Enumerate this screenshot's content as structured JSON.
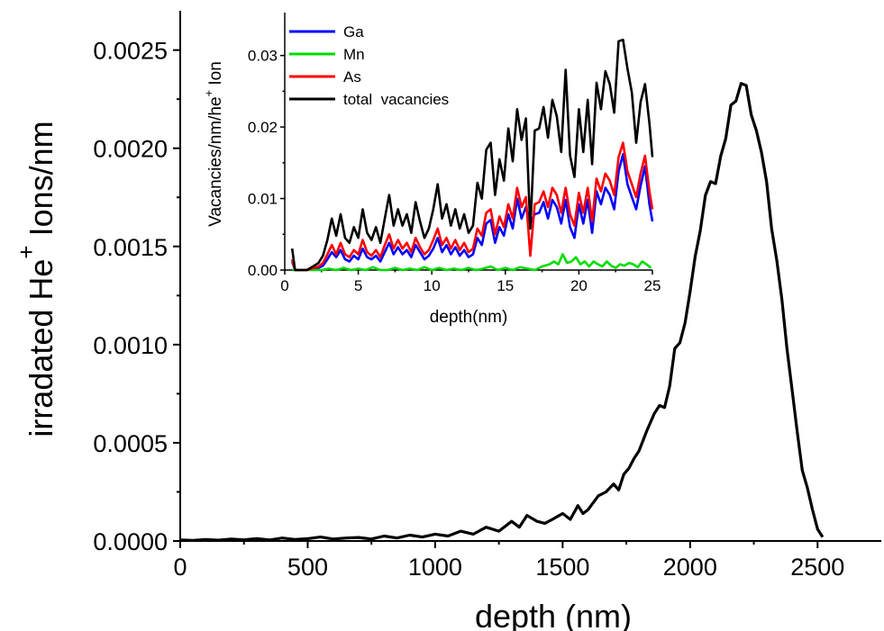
{
  "chart_data": [
    {
      "type": "line",
      "title": "",
      "xlabel": "depth (nm)",
      "ylabel": {
        "main": "irradated He",
        "superscript": "+",
        "tail": " Ions/nm"
      },
      "xlim": [
        0,
        2750
      ],
      "ylim": [
        0,
        0.0027
      ],
      "xticks": [
        "0",
        "500",
        "1000",
        "1500",
        "2000",
        "2500"
      ],
      "yticks": [
        "0.0000",
        "0.0005",
        "0.0010",
        "0.0015",
        "0.0020",
        "0.0025"
      ],
      "grid": false,
      "series": [
        {
          "color": "#000000",
          "x": [
            0,
            50,
            100,
            150,
            200,
            250,
            300,
            350,
            400,
            450,
            500,
            550,
            600,
            650,
            700,
            750,
            800,
            850,
            900,
            950,
            1000,
            1050,
            1100,
            1150,
            1200,
            1250,
            1300,
            1330,
            1360,
            1400,
            1430,
            1460,
            1500,
            1530,
            1560,
            1580,
            1600,
            1640,
            1670,
            1700,
            1720,
            1740,
            1760,
            1780,
            1800,
            1830,
            1860,
            1880,
            1900,
            1920,
            1940,
            1960,
            1980,
            2000,
            2020,
            2040,
            2060,
            2080,
            2100,
            2120,
            2140,
            2160,
            2180,
            2200,
            2220,
            2240,
            2260,
            2280,
            2300,
            2320,
            2340,
            2360,
            2380,
            2400,
            2420,
            2440,
            2460,
            2480,
            2500,
            2520
          ],
          "y": [
            5e-06,
            3e-06,
            8e-06,
            4e-06,
            1e-05,
            6e-06,
            1.2e-05,
            5e-06,
            1.5e-05,
            8e-06,
            1.2e-05,
            2e-05,
            1e-05,
            1.5e-05,
            1.8e-05,
            1e-05,
            2.5e-05,
            1.5e-05,
            3e-05,
            2e-05,
            3.5e-05,
            2.5e-05,
            5e-05,
            3.5e-05,
            7e-05,
            5e-05,
            0.0001,
            7e-05,
            0.00013,
            0.0001,
            9e-05,
            0.00011,
            0.00014,
            0.00011,
            0.00018,
            0.00014,
            0.00016,
            0.00023,
            0.00025,
            0.00029,
            0.00026,
            0.00034,
            0.00037,
            0.00042,
            0.00046,
            0.00056,
            0.00065,
            0.00069,
            0.00068,
            0.00079,
            0.00098,
            0.00101,
            0.00111,
            0.00127,
            0.00145,
            0.00158,
            0.00176,
            0.00183,
            0.00182,
            0.00196,
            0.00205,
            0.00222,
            0.00224,
            0.00233,
            0.00232,
            0.00217,
            0.00209,
            0.00198,
            0.00183,
            0.00159,
            0.00143,
            0.00123,
            0.00098,
            0.00077,
            0.00056,
            0.00036,
            0.00027,
            0.00016,
            6e-05,
            2e-05
          ]
        }
      ]
    },
    {
      "type": "line",
      "title": "",
      "xlabel": "depth(nm)",
      "ylabel": {
        "main": "Vacancies/nm/he",
        "superscript": "+",
        "tail": " Ion"
      },
      "xlim": [
        0,
        25
      ],
      "ylim": [
        0,
        0.036
      ],
      "xticks": [
        "0",
        "5",
        "10",
        "15",
        "20",
        "25"
      ],
      "yticks": [
        "0.00",
        "0.01",
        "0.02",
        "0.03"
      ],
      "grid": false,
      "legend_position": "top-left",
      "series": [
        {
          "name": "Ga",
          "color": "#0000ff",
          "x": [
            0.5,
            0.7,
            1,
            1.5,
            2,
            2.3,
            2.6,
            2.9,
            3.2,
            3.5,
            3.8,
            4.1,
            4.4,
            4.7,
            5,
            5.3,
            5.6,
            5.9,
            6.2,
            6.5,
            6.8,
            7.1,
            7.4,
            7.7,
            8,
            8.3,
            8.6,
            8.9,
            9.2,
            9.5,
            9.8,
            10.1,
            10.4,
            10.7,
            11,
            11.3,
            11.6,
            11.9,
            12.2,
            12.5,
            12.8,
            13.1,
            13.4,
            13.7,
            14,
            14.3,
            14.6,
            14.9,
            15.2,
            15.5,
            15.8,
            16.1,
            16.4,
            16.7,
            17,
            17.3,
            17.6,
            17.9,
            18.2,
            18.5,
            18.8,
            19.1,
            19.4,
            19.7,
            20,
            20.3,
            20.6,
            20.9,
            21.2,
            21.5,
            21.8,
            22.1,
            22.4,
            22.7,
            23,
            23.3,
            23.6,
            23.9,
            24.2,
            24.5,
            24.8,
            25
          ],
          "y": [
            0.0012,
            0,
            0,
            0,
            0.0002,
            0.0003,
            0.0006,
            0.0015,
            0.0025,
            0.0018,
            0.0028,
            0.0015,
            0.0012,
            0.002,
            0.0015,
            0.003,
            0.0018,
            0.0015,
            0.002,
            0.0012,
            0.0025,
            0.0038,
            0.0022,
            0.0032,
            0.0022,
            0.0028,
            0.0018,
            0.0035,
            0.0025,
            0.0015,
            0.002,
            0.003,
            0.0045,
            0.0025,
            0.0035,
            0.0022,
            0.0032,
            0.002,
            0.0028,
            0.0018,
            0.0022,
            0.0045,
            0.0035,
            0.0065,
            0.007,
            0.0038,
            0.006,
            0.0048,
            0.0078,
            0.0058,
            0.01,
            0.0072,
            0.0088,
            0.0065,
            0.0078,
            0.008,
            0.0095,
            0.0072,
            0.0098,
            0.0088,
            0.0065,
            0.0098,
            0.006,
            0.0045,
            0.0092,
            0.0065,
            0.0098,
            0.0052,
            0.011,
            0.0092,
            0.0115,
            0.0105,
            0.0085,
            0.0138,
            0.0162,
            0.012,
            0.0102,
            0.0085,
            0.0118,
            0.0145,
            0.0092,
            0.0068
          ]
        },
        {
          "name": "Mn",
          "color": "#00dd00",
          "x": [
            0.5,
            1,
            1.5,
            2,
            2.5,
            3,
            3.5,
            4,
            4.5,
            5,
            5.5,
            6,
            6.5,
            7,
            7.5,
            8,
            8.5,
            9,
            9.5,
            10,
            10.5,
            11,
            11.5,
            12,
            12.5,
            13,
            13.5,
            14,
            14.5,
            15,
            15.5,
            16,
            16.5,
            17,
            17.5,
            18,
            18.3,
            18.6,
            18.9,
            19.2,
            19.5,
            19.8,
            20.1,
            20.4,
            20.7,
            21,
            21.3,
            21.6,
            21.9,
            22.2,
            22.5,
            22.8,
            23.1,
            23.4,
            23.7,
            24,
            24.3,
            24.6,
            24.9
          ],
          "y": [
            0,
            0,
            0,
            0,
            0,
            0.0002,
            0,
            0.0003,
            0,
            0.0002,
            0,
            0.0004,
            0,
            0,
            0.0003,
            0,
            0.0002,
            0,
            0.0004,
            0,
            0.0003,
            0,
            0.0002,
            0,
            0.0003,
            0,
            0.0002,
            0.0005,
            0,
            0.0003,
            0,
            0.0004,
            0.0002,
            0,
            0.0005,
            0.0008,
            0.0012,
            0.0008,
            0.0022,
            0.001,
            0.0012,
            0.0018,
            0.0008,
            0.0012,
            0.0005,
            0.0012,
            0.0008,
            0.0005,
            0.0012,
            0.0006,
            0.0003,
            0.0008,
            0.0006,
            0.001,
            0.0008,
            0.0004,
            0.0012,
            0.0008,
            0.0003
          ]
        },
        {
          "name": "As",
          "color": "#ff0000",
          "x": [
            0.5,
            0.7,
            1,
            1.5,
            2,
            2.3,
            2.6,
            2.9,
            3.2,
            3.5,
            3.8,
            4.1,
            4.4,
            4.7,
            5,
            5.3,
            5.6,
            5.9,
            6.2,
            6.5,
            6.8,
            7.1,
            7.4,
            7.7,
            8,
            8.3,
            8.6,
            8.9,
            9.2,
            9.5,
            9.8,
            10.1,
            10.4,
            10.7,
            11,
            11.3,
            11.6,
            11.9,
            12.2,
            12.5,
            12.8,
            13.1,
            13.4,
            13.7,
            14,
            14.3,
            14.6,
            14.9,
            15.2,
            15.5,
            15.8,
            16.1,
            16.4,
            16.7,
            17,
            17.3,
            17.6,
            17.9,
            18.2,
            18.5,
            18.8,
            19.1,
            19.4,
            19.7,
            20,
            20.3,
            20.6,
            20.9,
            21.2,
            21.5,
            21.8,
            22.1,
            22.4,
            22.7,
            23,
            23.3,
            23.6,
            23.9,
            24.2,
            24.5,
            24.8,
            25
          ],
          "y": [
            0.0015,
            0,
            0,
            0,
            0.0003,
            0.0005,
            0.001,
            0.0022,
            0.0035,
            0.0022,
            0.0038,
            0.0022,
            0.0018,
            0.0028,
            0.0022,
            0.0042,
            0.0025,
            0.002,
            0.0028,
            0.0018,
            0.0035,
            0.005,
            0.003,
            0.0042,
            0.003,
            0.0038,
            0.0025,
            0.0045,
            0.0032,
            0.0022,
            0.0028,
            0.0042,
            0.0058,
            0.0035,
            0.0045,
            0.003,
            0.0042,
            0.0028,
            0.0038,
            0.0025,
            0.003,
            0.0058,
            0.0048,
            0.008,
            0.0085,
            0.005,
            0.0075,
            0.006,
            0.0092,
            0.0072,
            0.0115,
            0.0088,
            0.0102,
            0.002,
            0.0092,
            0.0095,
            0.011,
            0.0088,
            0.0115,
            0.0105,
            0.008,
            0.0115,
            0.0078,
            0.0062,
            0.0108,
            0.008,
            0.0115,
            0.0068,
            0.0128,
            0.011,
            0.0135,
            0.0125,
            0.0105,
            0.0158,
            0.0178,
            0.0138,
            0.012,
            0.0102,
            0.0135,
            0.016,
            0.011,
            0.0085
          ]
        },
        {
          "name": "total  vacancies",
          "color": "#000000",
          "x": [
            0.5,
            0.7,
            1,
            1.5,
            2,
            2.3,
            2.6,
            2.9,
            3.2,
            3.5,
            3.8,
            4.1,
            4.4,
            4.7,
            5,
            5.3,
            5.6,
            5.9,
            6.2,
            6.5,
            6.8,
            7.1,
            7.4,
            7.7,
            8,
            8.3,
            8.6,
            8.9,
            9.2,
            9.5,
            9.8,
            10.1,
            10.4,
            10.7,
            11,
            11.3,
            11.6,
            11.9,
            12.2,
            12.5,
            12.8,
            13.1,
            13.4,
            13.7,
            14,
            14.3,
            14.6,
            14.9,
            15.2,
            15.5,
            15.8,
            16.1,
            16.4,
            16.7,
            17,
            17.3,
            17.6,
            17.9,
            18.2,
            18.5,
            18.8,
            19.1,
            19.4,
            19.7,
            20,
            20.3,
            20.6,
            20.9,
            21.2,
            21.5,
            21.8,
            22.1,
            22.4,
            22.7,
            23,
            23.3,
            23.6,
            23.9,
            24.2,
            24.5,
            24.8,
            25
          ],
          "y": [
            0.003,
            0,
            0,
            0,
            0.0006,
            0.001,
            0.002,
            0.0042,
            0.0072,
            0.0048,
            0.0078,
            0.0045,
            0.0038,
            0.006,
            0.0045,
            0.0085,
            0.0052,
            0.0042,
            0.006,
            0.0038,
            0.0072,
            0.0105,
            0.0062,
            0.0085,
            0.0062,
            0.0078,
            0.0052,
            0.0095,
            0.0068,
            0.0045,
            0.0058,
            0.0085,
            0.012,
            0.0072,
            0.0092,
            0.0062,
            0.0085,
            0.0058,
            0.0078,
            0.0052,
            0.0062,
            0.0122,
            0.01,
            0.0168,
            0.0178,
            0.0105,
            0.0155,
            0.0125,
            0.0198,
            0.0152,
            0.0225,
            0.0182,
            0.0212,
            0.0058,
            0.0195,
            0.0198,
            0.0228,
            0.0185,
            0.0238,
            0.0215,
            0.0165,
            0.028,
            0.016,
            0.013,
            0.0225,
            0.0165,
            0.0238,
            0.0148,
            0.0262,
            0.0225,
            0.0278,
            0.026,
            0.022,
            0.032,
            0.0322,
            0.0282,
            0.0248,
            0.0178,
            0.0235,
            0.026,
            0.0205,
            0.0158
          ]
        }
      ]
    }
  ]
}
